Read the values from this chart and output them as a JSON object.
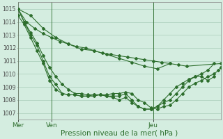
{
  "background_color": "#d4ede0",
  "grid_color": "#a8cdb8",
  "line_color": "#2d6e2d",
  "xlabel": "Pression niveau de la mer( hPa )",
  "xlabel_fontsize": 7.5,
  "ylim": [
    1006.5,
    1015.5
  ],
  "yticks": [
    1007,
    1008,
    1009,
    1010,
    1011,
    1012,
    1013,
    1014,
    1015
  ],
  "xtick_labels": [
    "Mer",
    "Ven",
    "Jeu"
  ],
  "xtick_positions": [
    0,
    16,
    64
  ],
  "xlim": [
    0,
    96
  ],
  "series": [
    [
      1015.0,
      1014.5,
      1013.5,
      1012.8,
      1012.3,
      1011.9,
      1011.8,
      1011.5,
      1011.2,
      1010.9,
      1010.6,
      1010.4,
      1010.8
    ],
    [
      1015.0,
      1014.0,
      1013.5,
      1013.1,
      1012.8,
      1012.5,
      1012.3,
      1012.1,
      1012.0,
      1011.8,
      1011.6,
      1011.5,
      1011.4,
      1011.3,
      1011.2,
      1011.1,
      1011.0,
      1010.9,
      1010.8,
      1010.7,
      1010.6,
      1010.8
    ],
    [
      1015.0,
      1014.0,
      1013.2,
      1012.4,
      1011.4,
      1010.5,
      1009.8,
      1009.2,
      1008.8,
      1008.5,
      1008.5,
      1008.4,
      1008.4,
      1008.4,
      1008.4,
      1008.5,
      1008.5,
      1008.6,
      1008.5,
      1008.0,
      1007.8,
      1007.4,
      1007.3,
      1007.5,
      1007.6,
      1008.0,
      1008.5,
      1009.0,
      1009.3,
      1009.5,
      1009.8,
      1010.0,
      1010.3,
      1010.5,
      1010.5
    ],
    [
      1014.5,
      1013.8,
      1012.8,
      1011.8,
      1010.8,
      1009.5,
      1008.8,
      1008.5,
      1008.4,
      1008.4,
      1008.3,
      1008.3,
      1008.3,
      1008.4,
      1008.3,
      1008.2,
      1008.0,
      1008.2,
      1007.8,
      1007.5,
      1007.3,
      1007.3,
      1007.5,
      1007.8,
      1008.0,
      1008.5,
      1009.0,
      1009.5,
      1009.8,
      1009.8,
      1009.5,
      1009.8
    ],
    [
      1015.0,
      1014.0,
      1013.0,
      1012.2,
      1011.0,
      1009.8,
      1009.2,
      1008.5,
      1008.4,
      1008.4,
      1008.3,
      1008.3,
      1008.4,
      1008.4,
      1008.3,
      1008.3,
      1008.3,
      1008.5,
      1008.0,
      1007.5,
      1007.3,
      1007.3,
      1007.5,
      1008.0,
      1008.5,
      1009.0,
      1009.3,
      1009.6,
      1009.8,
      1010.0,
      1010.3,
      1010.8
    ]
  ],
  "series_x": [
    [
      0,
      6,
      12,
      18,
      24,
      30,
      36,
      42,
      48,
      54,
      60,
      66,
      72
    ],
    [
      0,
      4,
      8,
      12,
      16,
      20,
      24,
      28,
      32,
      36,
      40,
      44,
      48,
      52,
      56,
      60,
      64,
      68,
      72,
      76,
      80,
      96
    ],
    [
      0,
      3,
      6,
      9,
      12,
      15,
      18,
      21,
      24,
      27,
      30,
      33,
      36,
      39,
      42,
      45,
      48,
      51,
      54,
      57,
      60,
      63,
      66,
      69,
      72,
      75,
      78,
      81,
      84,
      87,
      90,
      93,
      95,
      96,
      96
    ],
    [
      0,
      3,
      6,
      9,
      12,
      15,
      18,
      21,
      24,
      27,
      30,
      33,
      36,
      39,
      42,
      45,
      48,
      51,
      54,
      57,
      60,
      63,
      66,
      69,
      72,
      75,
      78,
      81,
      84,
      87,
      90,
      93
    ],
    [
      0,
      3,
      6,
      9,
      12,
      15,
      18,
      21,
      24,
      27,
      30,
      33,
      36,
      39,
      42,
      45,
      48,
      51,
      54,
      57,
      60,
      63,
      66,
      69,
      72,
      75,
      78,
      81,
      84,
      87,
      90,
      93
    ]
  ]
}
